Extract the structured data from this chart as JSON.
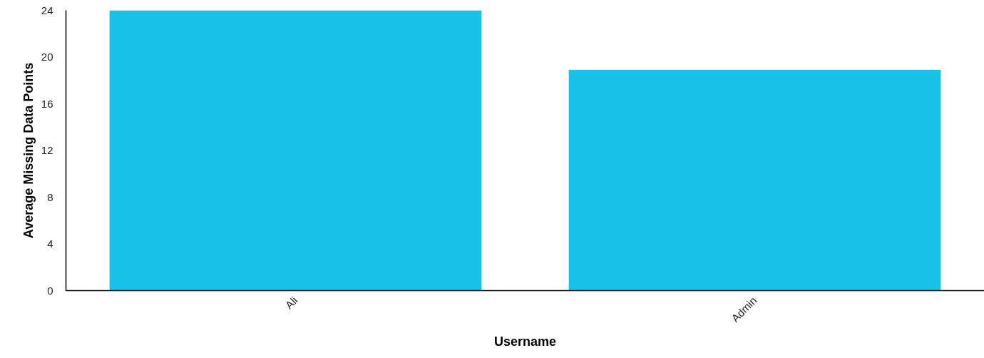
{
  "chart_data": {
    "type": "bar",
    "xlabel": "Username",
    "ylabel": "Average Missing Data Points",
    "categories": [
      "Ali",
      "Admin"
    ],
    "values": [
      24,
      18.9
    ],
    "color": "#18c1e7",
    "ylim": [
      0,
      24
    ],
    "yticks": [
      0,
      4,
      8,
      12,
      16,
      20,
      24
    ],
    "grid": false
  }
}
